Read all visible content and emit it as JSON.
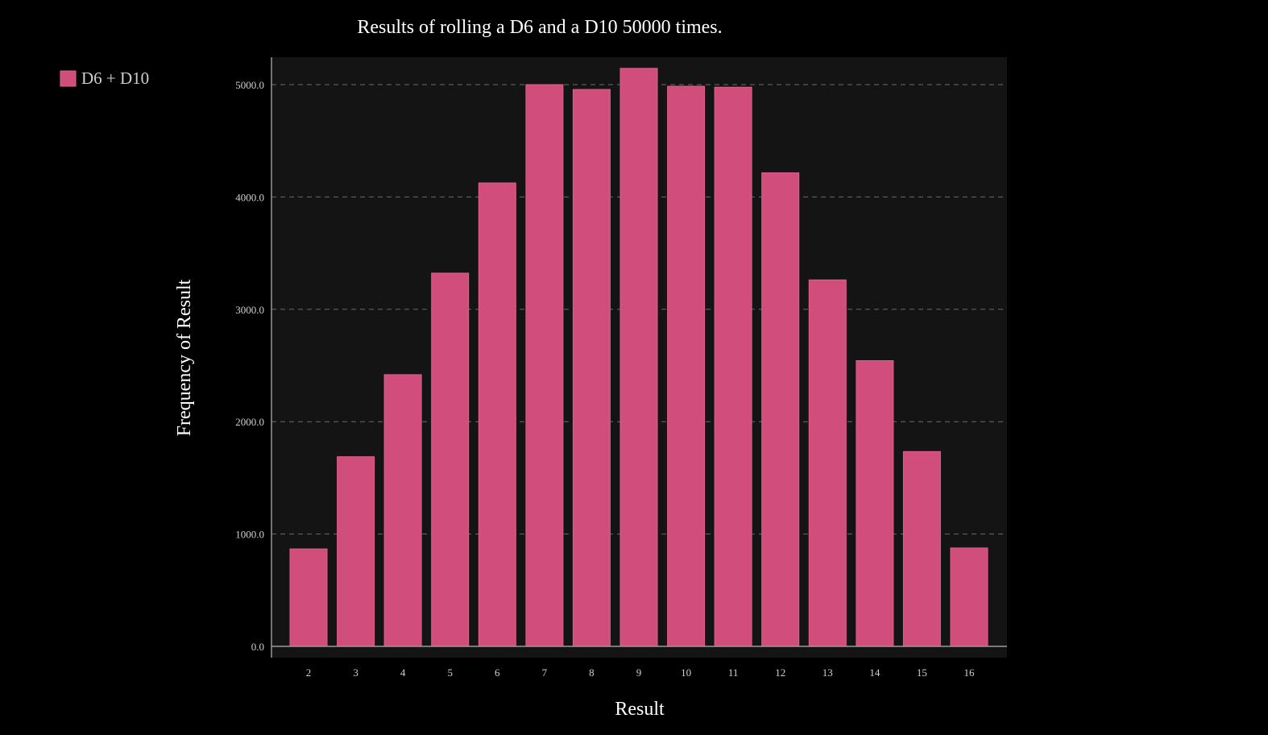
{
  "colors": {
    "background": "#000000",
    "plot_background": "#141414",
    "bar_fill": "#d14d7c",
    "bar_stroke": "#e0608d",
    "grid": "#6a6a6a",
    "axis": "#9a9a9a",
    "text": "#ffffff",
    "tick_text": "#cfcfcf"
  },
  "chart_data": {
    "type": "bar",
    "title": "Results of rolling a D6 and a D10 50000 times.",
    "xlabel": "Result",
    "ylabel": "Frequency of Result",
    "categories": [
      "2",
      "3",
      "4",
      "5",
      "6",
      "7",
      "8",
      "9",
      "10",
      "11",
      "12",
      "13",
      "14",
      "15",
      "16"
    ],
    "series": [
      {
        "name": "D6 + D10",
        "values": [
          867,
          1688,
          2418,
          3322,
          4125,
          5000,
          4957,
          5145,
          4986,
          4977,
          4215,
          3262,
          2543,
          1734,
          876
        ]
      }
    ],
    "ylim": [
      0,
      5200
    ],
    "yticks": [
      "0.0",
      "1000.0",
      "2000.0",
      "3000.0",
      "4000.0",
      "5000.0"
    ],
    "ytick_values": [
      0,
      1000,
      2000,
      3000,
      4000,
      5000
    ],
    "grid": true,
    "grid_style": "dashed-horizontal",
    "legend_position": "top-left"
  }
}
